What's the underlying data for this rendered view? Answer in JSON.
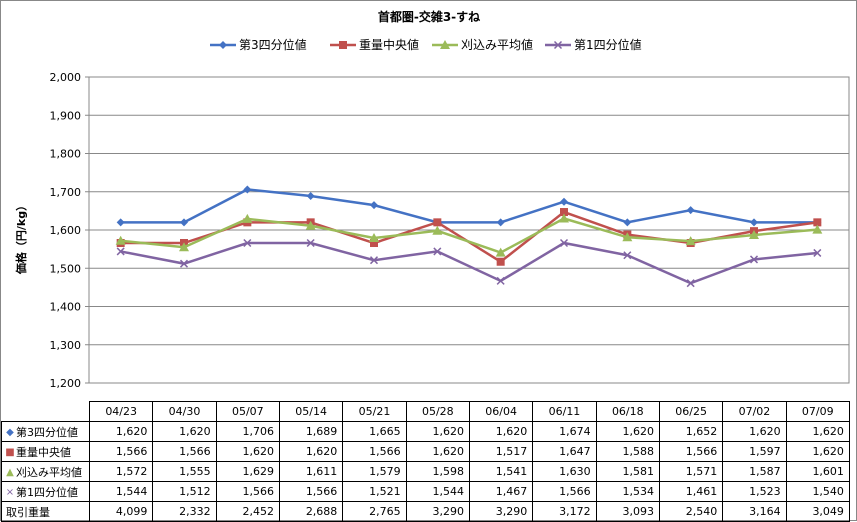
{
  "chart_data": {
    "type": "line",
    "title": "首都圏-交雑3-すね",
    "ylabel": "価格（円/kg）",
    "xlabel": "",
    "ylim": [
      1200,
      2000
    ],
    "yticks": [
      "1,200",
      "1,300",
      "1,400",
      "1,500",
      "1,600",
      "1,700",
      "1,800",
      "1,900",
      "2,000"
    ],
    "ytick_values": [
      1200,
      1300,
      1400,
      1500,
      1600,
      1700,
      1800,
      1900,
      2000
    ],
    "grid": true,
    "legend_position": "top",
    "categories": [
      "04/23",
      "04/30",
      "05/07",
      "05/14",
      "05/21",
      "05/28",
      "06/04",
      "06/11",
      "06/18",
      "06/25",
      "07/02",
      "07/09"
    ],
    "series": [
      {
        "name": "第3四分位値",
        "color": "#4472C4",
        "marker": "diamond",
        "values": [
          1620,
          1620,
          1706,
          1689,
          1665,
          1620,
          1620,
          1674,
          1620,
          1652,
          1620,
          1620
        ],
        "labels": [
          "1,620",
          "1,620",
          "1,706",
          "1,689",
          "1,665",
          "1,620",
          "1,620",
          "1,674",
          "1,620",
          "1,652",
          "1,620",
          "1,620"
        ]
      },
      {
        "name": "重量中央値",
        "color": "#C0504D",
        "marker": "square",
        "values": [
          1566,
          1566,
          1620,
          1620,
          1566,
          1620,
          1517,
          1647,
          1588,
          1566,
          1597,
          1620
        ],
        "labels": [
          "1,566",
          "1,566",
          "1,620",
          "1,620",
          "1,566",
          "1,620",
          "1,517",
          "1,647",
          "1,588",
          "1,566",
          "1,597",
          "1,620"
        ]
      },
      {
        "name": "刈込み平均値",
        "color": "#9BBB59",
        "marker": "triangle",
        "values": [
          1572,
          1555,
          1629,
          1611,
          1579,
          1598,
          1541,
          1630,
          1581,
          1571,
          1587,
          1601
        ],
        "labels": [
          "1,572",
          "1,555",
          "1,629",
          "1,611",
          "1,579",
          "1,598",
          "1,541",
          "1,630",
          "1,581",
          "1,571",
          "1,587",
          "1,601"
        ]
      },
      {
        "name": "第1四分位値",
        "color": "#8064A2",
        "marker": "x",
        "values": [
          1544,
          1512,
          1566,
          1566,
          1521,
          1544,
          1467,
          1566,
          1534,
          1461,
          1523,
          1540
        ],
        "labels": [
          "1,544",
          "1,512",
          "1,566",
          "1,566",
          "1,521",
          "1,544",
          "1,467",
          "1,566",
          "1,534",
          "1,461",
          "1,523",
          "1,540"
        ]
      }
    ],
    "extra_row": {
      "name": "取引重量",
      "values": [
        4099,
        2332,
        2452,
        2688,
        2765,
        3290,
        3290,
        3172,
        3093,
        2540,
        3164,
        3049
      ],
      "labels": [
        "4,099",
        "2,332",
        "2,452",
        "2,688",
        "2,765",
        "3,290",
        "3,290",
        "3,172",
        "3,093",
        "2,540",
        "3,164",
        "3,049"
      ]
    }
  }
}
